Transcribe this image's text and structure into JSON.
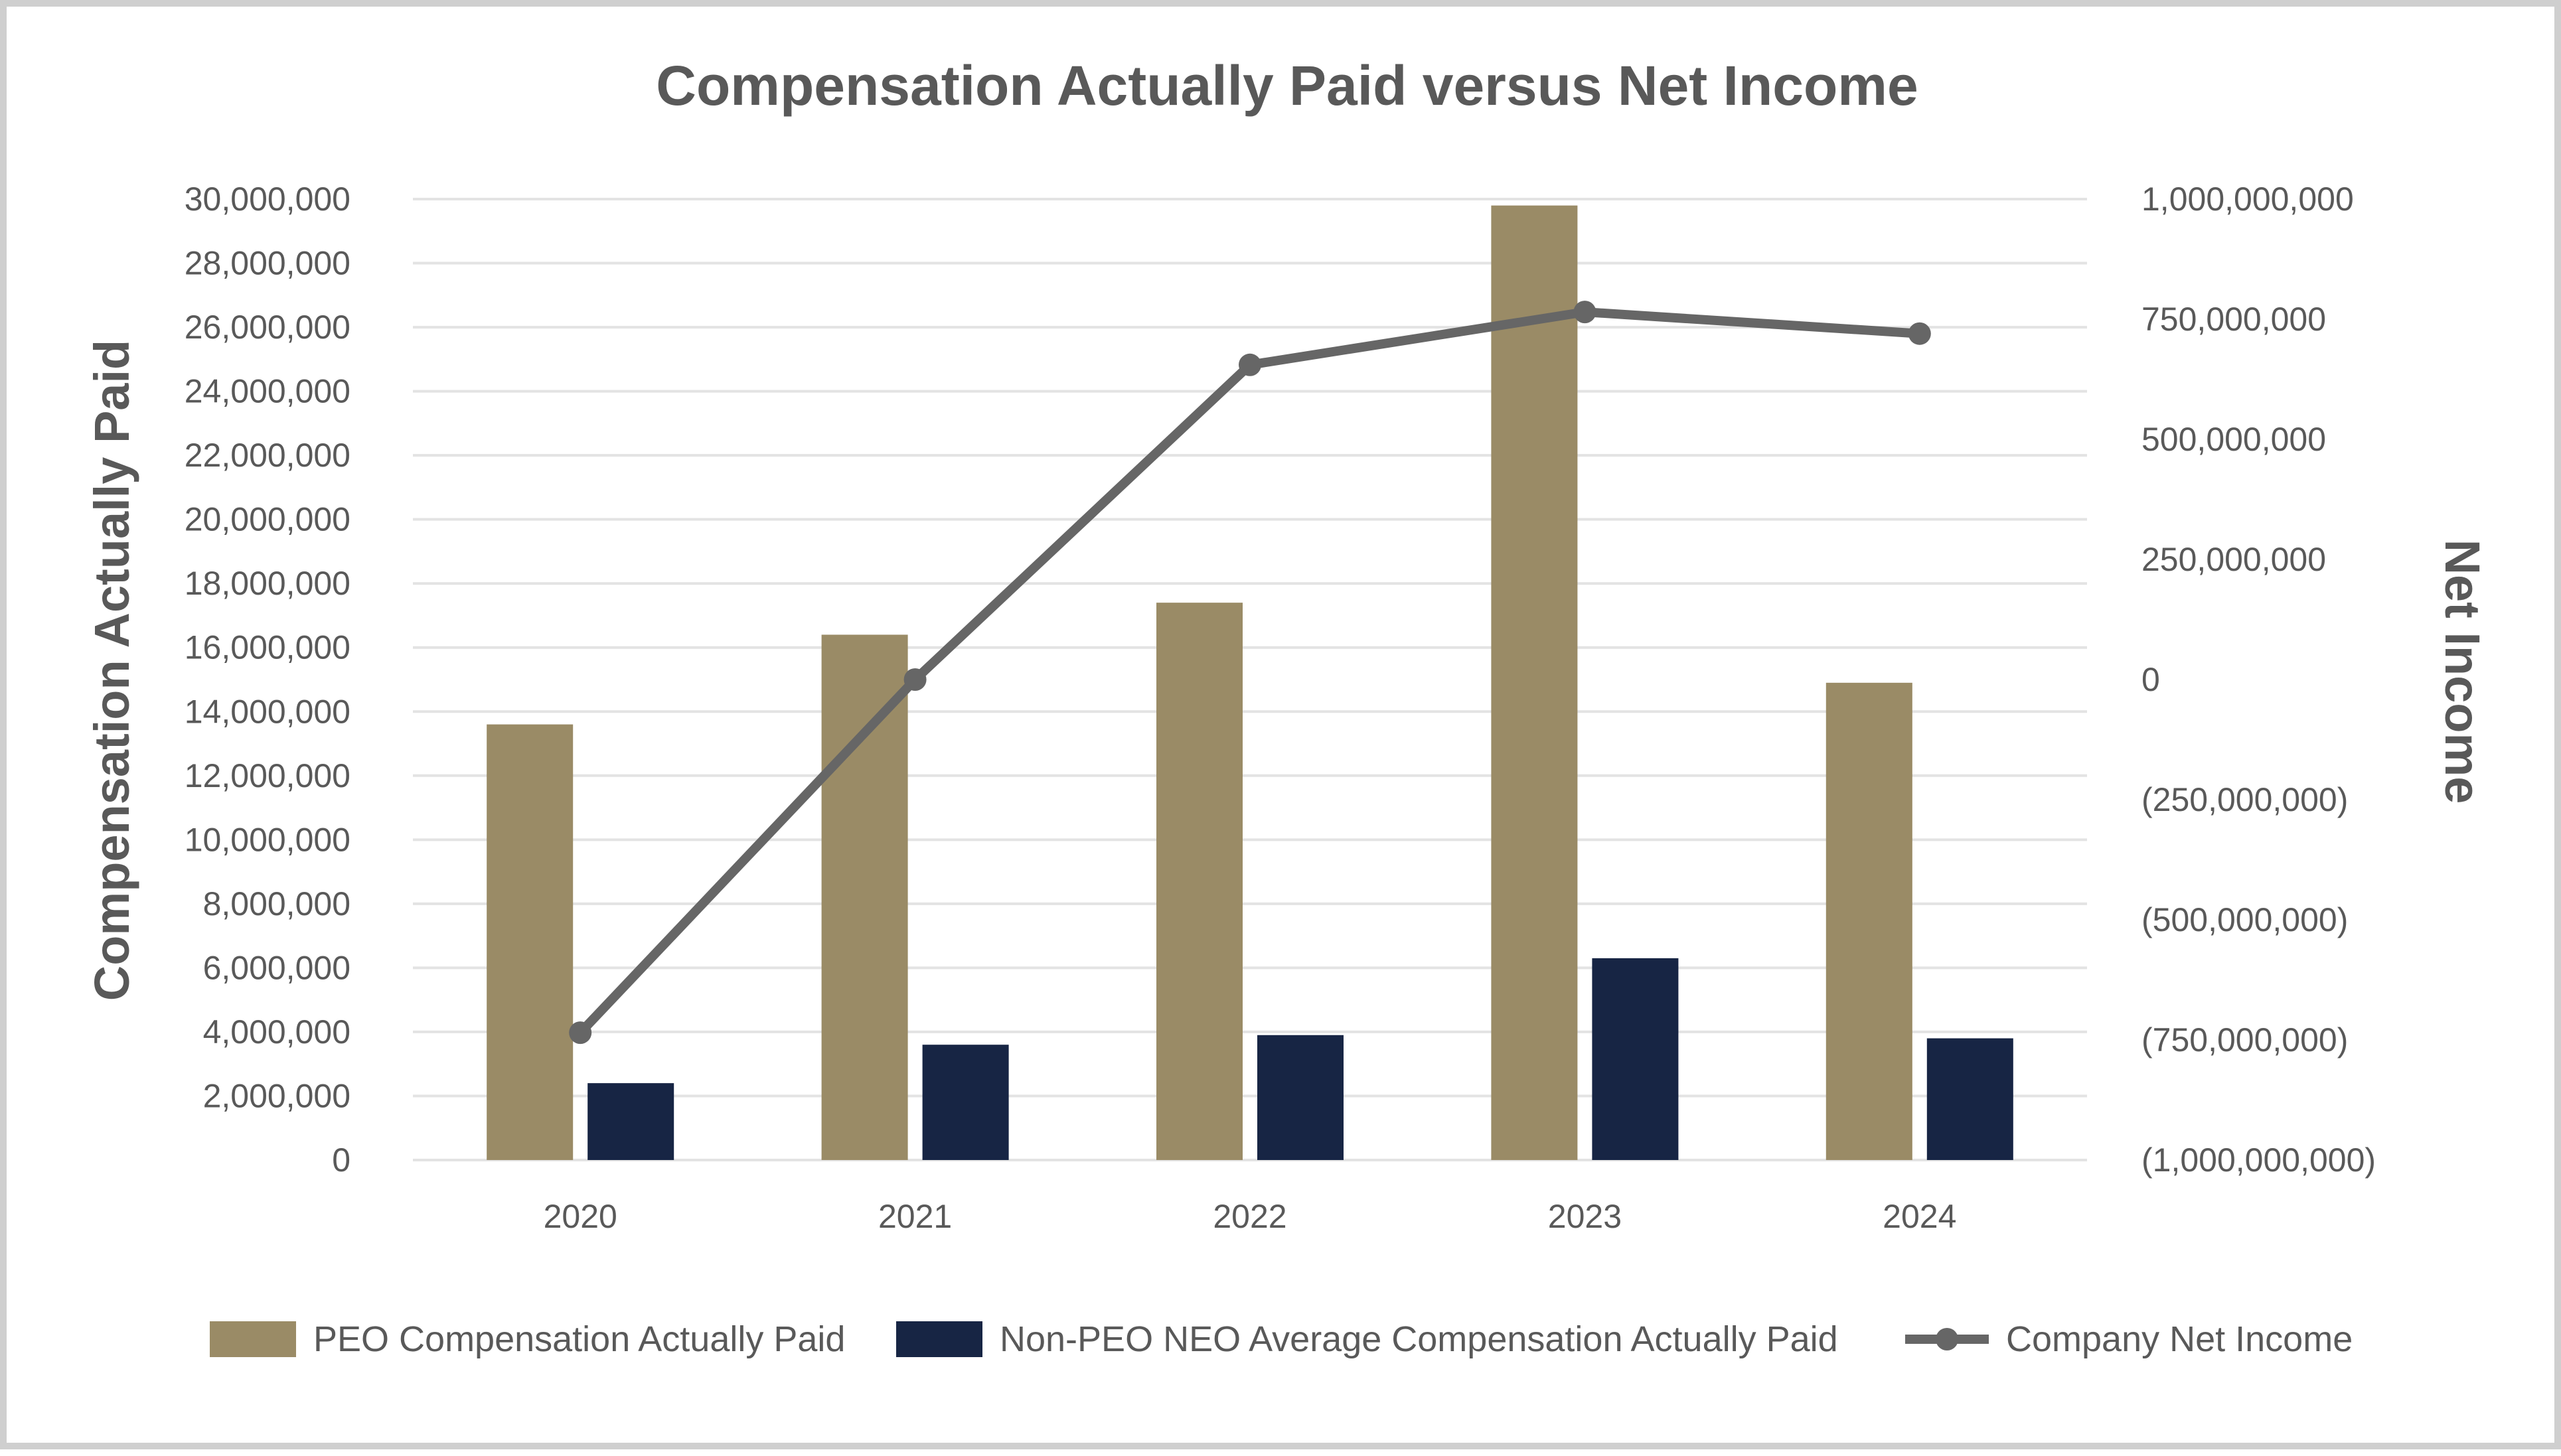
{
  "chart_data": {
    "type": "bar",
    "title": "Compensation Actually Paid versus Net Income",
    "xlabel": "",
    "ylabel": "Compensation Actually Paid",
    "y2label": "Net Income",
    "categories": [
      "2020",
      "2021",
      "2022",
      "2023",
      "2024"
    ],
    "ylim": [
      0,
      30000000
    ],
    "y2lim": [
      -1000000000,
      1000000000
    ],
    "yticks": [
      0,
      2000000,
      4000000,
      6000000,
      8000000,
      10000000,
      12000000,
      14000000,
      16000000,
      18000000,
      20000000,
      22000000,
      24000000,
      26000000,
      28000000,
      30000000
    ],
    "ytick_labels": [
      "0",
      "2,000,000",
      "4,000,000",
      "6,000,000",
      "8,000,000",
      "10,000,000",
      "12,000,000",
      "14,000,000",
      "16,000,000",
      "18,000,000",
      "20,000,000",
      "22,000,000",
      "24,000,000",
      "26,000,000",
      "28,000,000",
      "30,000,000"
    ],
    "y2ticks": [
      -1000000000,
      -750000000,
      -500000000,
      -250000000,
      0,
      250000000,
      500000000,
      750000000,
      1000000000
    ],
    "y2tick_labels": [
      "(1,000,000,000)",
      "(750,000,000)",
      "(500,000,000)",
      "(250,000,000)",
      "0",
      "250,000,000",
      "500,000,000",
      "750,000,000",
      "1,000,000,000"
    ],
    "grid": true,
    "legend_position": "bottom",
    "series": [
      {
        "name": "PEO Compensation Actually Paid",
        "type": "bar",
        "axis": "left",
        "color": "#9a8b66",
        "values": [
          13600000,
          16400000,
          17400000,
          29800000,
          14900000
        ]
      },
      {
        "name": "Non-PEO NEO Average Compensation Actually Paid",
        "type": "bar",
        "axis": "left",
        "color": "#172544",
        "values": [
          2400000,
          3600000,
          3900000,
          6300000,
          3800000
        ]
      },
      {
        "name": "Company Net Income",
        "type": "line",
        "axis": "right",
        "color": "#666666",
        "values": [
          -735000000,
          0,
          655000000,
          765000000,
          720000000
        ]
      }
    ]
  }
}
